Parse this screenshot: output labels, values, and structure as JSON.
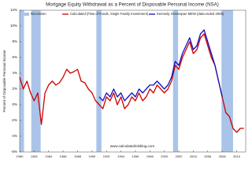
{
  "chart_data": {
    "type": "line",
    "title": "Mortgage Equity Withdrawal as a Percent of Disposable Personal Income (NSA)",
    "y_label": "Percent of Disposable Personal Income",
    "watermark": "www.calculatedriskblog.com",
    "recession_label": "Recession",
    "recession_color": "#a9c4e8",
    "recessions": [
      [
        1980.0,
        1980.6
      ],
      [
        1981.6,
        1982.9
      ],
      [
        1990.6,
        1991.3
      ],
      [
        2001.2,
        2001.9
      ],
      [
        2007.9,
        2009.5
      ]
    ],
    "legend": "top-left",
    "grid": false,
    "xlim": [
      1980,
      2011.25
    ],
    "xticks": [
      1980,
      1982,
      1984,
      1986,
      1988,
      1990,
      1992,
      1994,
      1996,
      1998,
      2000,
      2002,
      2004,
      2006,
      2008,
      2010
    ],
    "ylim": [
      -6,
      12
    ],
    "yticks": [
      {
        "value": -6,
        "label": "-6%"
      },
      {
        "value": -4,
        "label": "-4%"
      },
      {
        "value": -2,
        "label": "-2%"
      },
      {
        "value": 0,
        "label": "0%"
      },
      {
        "value": 2,
        "label": "2%"
      },
      {
        "value": 4,
        "label": "4%"
      },
      {
        "value": 6,
        "label": "6%"
      },
      {
        "value": 8,
        "label": "8%"
      },
      {
        "value": 10,
        "label": "10%"
      },
      {
        "value": 12,
        "label": "12%"
      }
    ],
    "series": [
      {
        "name": "Calculated (Flow of Funds, Single Family Investment)",
        "color": "#d00000",
        "x": [
          1980,
          1980.5,
          1981,
          1981.5,
          1982,
          1982.5,
          1983,
          1983.5,
          1984,
          1984.5,
          1985,
          1985.5,
          1986,
          1986.5,
          1987,
          1987.5,
          1988,
          1988.5,
          1989,
          1989.5,
          1990,
          1990.5,
          1991,
          1991.5,
          1992,
          1992.5,
          1993,
          1993.5,
          1994,
          1994.5,
          1995,
          1995.5,
          1996,
          1996.5,
          1997,
          1997.5,
          1998,
          1998.5,
          1999,
          1999.5,
          2000,
          2000.5,
          2001,
          2001.5,
          2002,
          2002.5,
          2003,
          2003.5,
          2004,
          2004.5,
          2005,
          2005.5,
          2006,
          2006.5,
          2007,
          2007.5,
          2008,
          2008.5,
          2009,
          2009.5,
          2010,
          2010.5,
          2011
        ],
        "values": [
          3.5,
          2,
          3,
          1.5,
          0.5,
          1.5,
          -2.5,
          1.5,
          2.5,
          3,
          2.5,
          2.8,
          3.5,
          4.5,
          4,
          4.2,
          4.5,
          3,
          2.8,
          2,
          1.5,
          0.5,
          0,
          -0.5,
          1,
          0.5,
          1.5,
          0,
          1,
          -0.5,
          0,
          1,
          0.5,
          1.5,
          0.5,
          1,
          2,
          1.5,
          2.5,
          2,
          1.5,
          2,
          3,
          5,
          4.5,
          6,
          7,
          8,
          6.5,
          7,
          8.5,
          9,
          7.5,
          6,
          5,
          3,
          1,
          -1,
          -1.5,
          -3,
          -3.5,
          -3,
          -3
        ]
      },
      {
        "name": "Kennedy Greenspan MEW (data ended 2008)",
        "color": "#1010c0",
        "x": [
          1991,
          1991.5,
          1992,
          1992.5,
          1993,
          1993.5,
          1994,
          1994.5,
          1995,
          1995.5,
          1996,
          1996.5,
          1997,
          1997.5,
          1998,
          1998.5,
          1999,
          1999.5,
          2000,
          2000.5,
          2001,
          2001.5,
          2002,
          2002.5,
          2003,
          2003.5,
          2004,
          2004.5,
          2005,
          2005.5,
          2006,
          2006.5,
          2007,
          2007.5,
          2008
        ],
        "values": [
          1,
          0.5,
          1.5,
          1,
          2,
          1,
          1.5,
          0.5,
          1,
          1.5,
          1,
          2,
          1.5,
          2,
          2.5,
          2.5,
          3,
          2.5,
          2,
          2.5,
          3.5,
          5.5,
          5,
          6.5,
          7.5,
          8.5,
          7,
          7.5,
          9,
          9.5,
          8,
          6.5,
          5,
          3,
          1
        ]
      }
    ]
  }
}
